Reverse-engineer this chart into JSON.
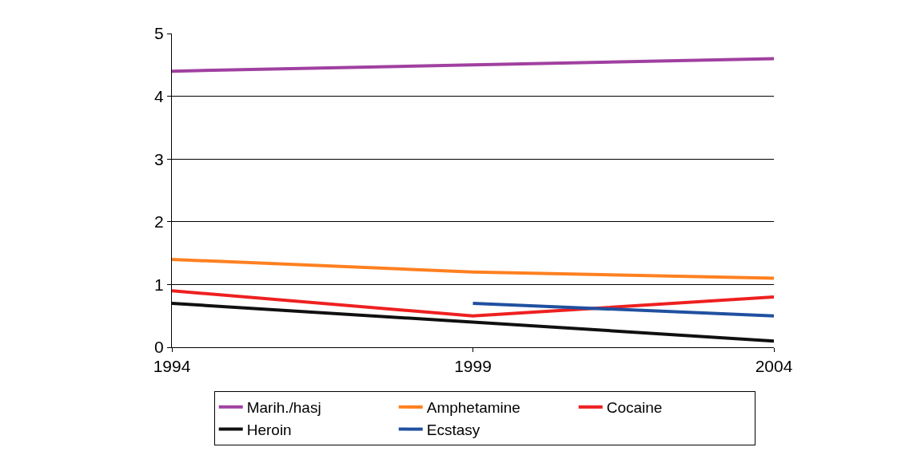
{
  "chart_data": {
    "type": "line",
    "x": [
      1994,
      1999,
      2004
    ],
    "series": [
      {
        "name": "Marih./hasj",
        "color": "#a040a0",
        "values": [
          4.4,
          4.5,
          4.6
        ]
      },
      {
        "name": "Amphetamine",
        "color": "#ff8020",
        "values": [
          1.4,
          1.2,
          1.1
        ]
      },
      {
        "name": "Cocaine",
        "color": "#ee2020",
        "values": [
          0.9,
          0.5,
          0.8
        ]
      },
      {
        "name": "Heroin",
        "color": "#101010",
        "values": [
          0.7,
          0.4,
          0.1
        ]
      },
      {
        "name": "Ecstasy",
        "color": "#2050a0",
        "values": [
          null,
          0.7,
          0.5
        ]
      }
    ],
    "xlim": [
      1994,
      2004
    ],
    "xticks": [
      1994,
      1999,
      2004
    ],
    "ylim": [
      0,
      5
    ],
    "yticks": [
      0,
      1,
      2,
      3,
      4,
      5
    ],
    "grid": "y",
    "legend": "bottom",
    "marker": "none",
    "line_style": "solid"
  }
}
